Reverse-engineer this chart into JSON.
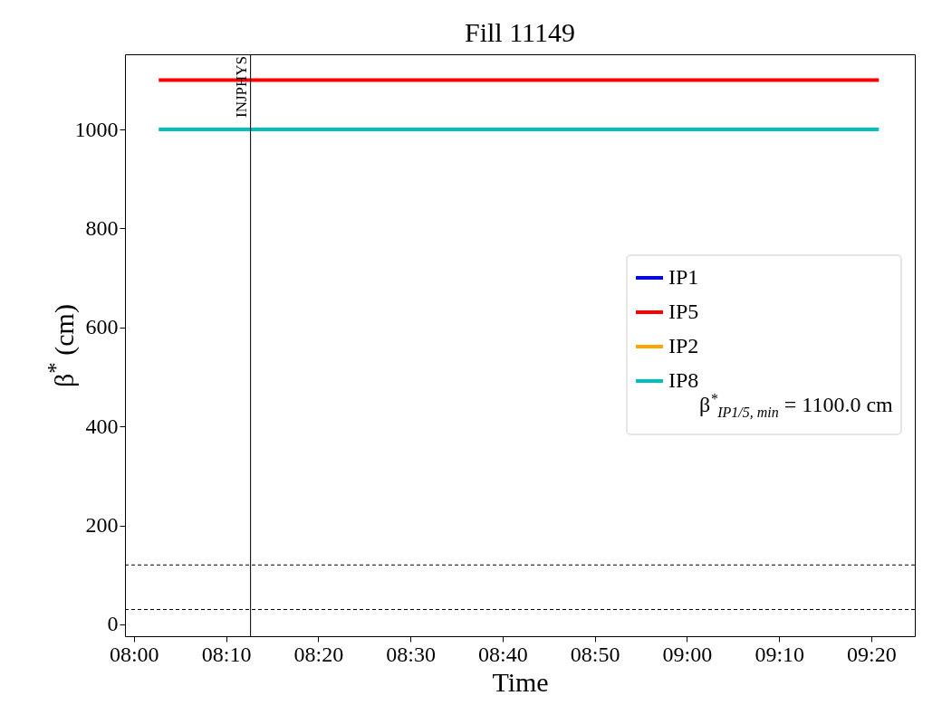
{
  "chart_data": {
    "type": "line",
    "title": "Fill 11149",
    "xlabel": "Time",
    "ylabel": "β$^{*}$ (cm)",
    "xlim": [
      7.984,
      9.412
    ],
    "xticks": [
      {
        "value": 8,
        "label": "08:00"
      },
      {
        "value": 8.1667,
        "label": "08:10"
      },
      {
        "value": 8.3333,
        "label": "08:20"
      },
      {
        "value": 8.5,
        "label": "08:30"
      },
      {
        "value": 8.6667,
        "label": "08:40"
      },
      {
        "value": 8.8333,
        "label": "08:50"
      },
      {
        "value": 9,
        "label": "09:00"
      },
      {
        "value": 9.1667,
        "label": "09:10"
      },
      {
        "value": 9.3333,
        "label": "09:20"
      }
    ],
    "ylim": [
      -24,
      1152
    ],
    "yticks": [
      0,
      200,
      400,
      600,
      800,
      1000
    ],
    "x": [
      8.045,
      9.347
    ],
    "series": [
      {
        "name": "IP1",
        "color": "#0000ff",
        "values": [
          null,
          null
        ]
      },
      {
        "name": "IP5",
        "color": "#ff0000",
        "values": [
          1100,
          1100
        ]
      },
      {
        "name": "IP2",
        "color": "#ffa500",
        "values": [
          null,
          null
        ]
      },
      {
        "name": "IP8",
        "color": "#00bfbf",
        "values": [
          1000,
          1000
        ]
      }
    ],
    "ref_lines": [
      {
        "axis": "y",
        "value": 120,
        "color": "#000000",
        "line_style": "dashed"
      },
      {
        "axis": "y",
        "value": 30,
        "color": "#000000",
        "line_style": "dashed"
      },
      {
        "axis": "x",
        "value": 8.211,
        "label": "INJPHYS",
        "color": "#000000",
        "line_style": "solid"
      }
    ],
    "annotations": [
      "β$^{*}$$_{IP1/5, min}$ = 1100.0 cm"
    ],
    "legend": "right"
  }
}
